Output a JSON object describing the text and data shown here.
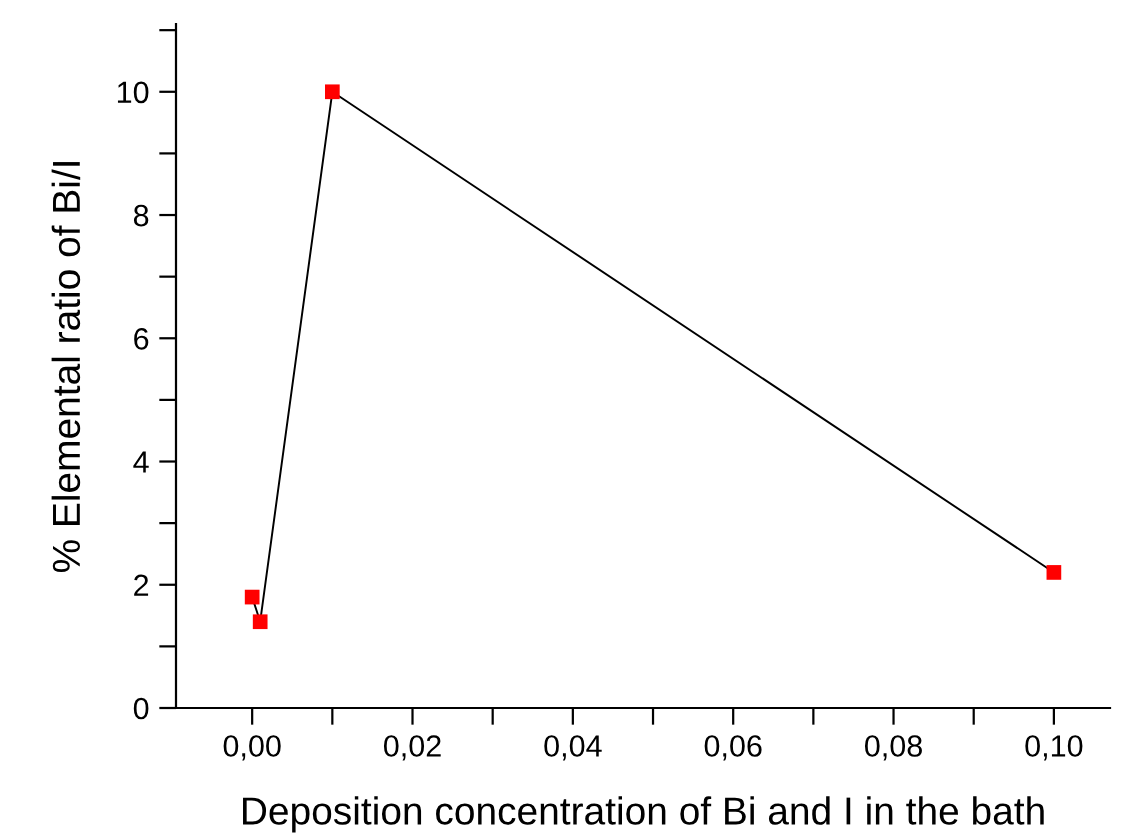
{
  "chart_data": {
    "type": "line",
    "xlabel": "Deposition concentration of Bi and I in the bath",
    "ylabel": "% Elemental ratio of Bi/I",
    "x": [
      0.0,
      0.001,
      0.01,
      0.1
    ],
    "series": [
      {
        "color": "#ff0000",
        "values": [
          1.8,
          1.4,
          10,
          2.2
        ]
      }
    ],
    "marker": "square",
    "xlim": [
      -0.0095,
      0.107
    ],
    "ylim": [
      0,
      11.1
    ],
    "xticks": [
      {
        "value": 0.0,
        "label": "0,00"
      },
      {
        "value": 0.01,
        "label": null
      },
      {
        "value": 0.02,
        "label": "0,02"
      },
      {
        "value": 0.03,
        "label": null
      },
      {
        "value": 0.04,
        "label": "0,04"
      },
      {
        "value": 0.05,
        "label": null
      },
      {
        "value": 0.06,
        "label": "0,06"
      },
      {
        "value": 0.07,
        "label": null
      },
      {
        "value": 0.08,
        "label": "0,08"
      },
      {
        "value": 0.09,
        "label": null
      },
      {
        "value": 0.1,
        "label": "0,10"
      }
    ],
    "yticks": [
      0,
      {
        "value": 1,
        "label": null
      },
      2,
      {
        "value": 3,
        "label": null
      },
      4,
      {
        "value": 5,
        "label": null
      },
      6,
      {
        "value": 7,
        "label": null
      },
      8,
      {
        "value": 9,
        "label": null
      },
      10,
      {
        "value": 11,
        "label": null
      }
    ],
    "grid": false
  }
}
